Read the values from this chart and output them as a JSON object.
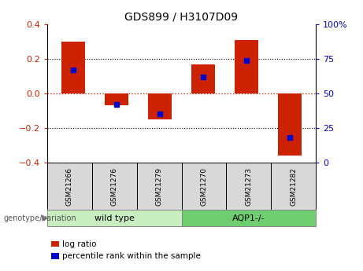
{
  "title": "GDS899 / H3107D09",
  "samples": [
    "GSM21266",
    "GSM21276",
    "GSM21279",
    "GSM21270",
    "GSM21273",
    "GSM21282"
  ],
  "log_ratios": [
    0.3,
    -0.07,
    -0.15,
    0.17,
    0.31,
    -0.36
  ],
  "percentile_rank_values": [
    67,
    42,
    35,
    62,
    74,
    18
  ],
  "wild_type_color": "#c8eec0",
  "aqp1_color": "#6fce6f",
  "sample_box_color": "#d8d8d8",
  "bar_color": "#CC2200",
  "dot_color": "#0000CC",
  "ylim": [
    -0.4,
    0.4
  ],
  "yticks_left": [
    -0.4,
    -0.2,
    0.0,
    0.2,
    0.4
  ],
  "yticks_right": [
    0,
    25,
    50,
    75,
    100
  ],
  "background_color": "#ffffff",
  "tick_label_color_left": "#CC2200",
  "tick_label_color_right": "#0000CC",
  "bar_width": 0.55
}
